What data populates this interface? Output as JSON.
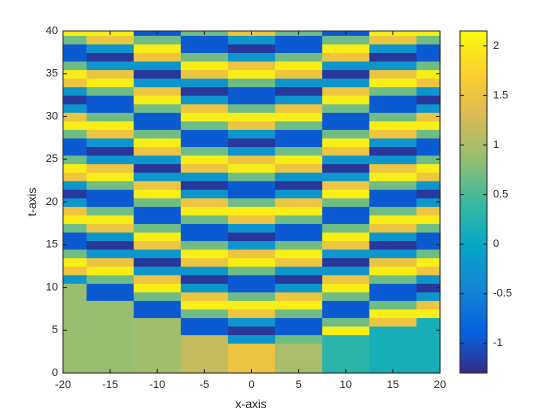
{
  "chart_data": {
    "type": "heatmap",
    "xlabel": "x-axis",
    "ylabel": "t-axis",
    "colormap": "parula",
    "x": [
      -20,
      -15,
      -10,
      -5,
      0,
      5,
      10,
      15,
      20
    ],
    "y": [
      0,
      1,
      2,
      3,
      4,
      5,
      6,
      7,
      8,
      9,
      10,
      11,
      12,
      13,
      14,
      15,
      16,
      17,
      18,
      19,
      20,
      21,
      22,
      23,
      24,
      25,
      26,
      27,
      28,
      29,
      30,
      31,
      32,
      33,
      34,
      35,
      36,
      37,
      38,
      39,
      40
    ],
    "z": [
      [
        0.9,
        0.9,
        0.95,
        1.15,
        1.5,
        1.0,
        0.3,
        0.15,
        0.15
      ],
      [
        0.9,
        0.9,
        0.95,
        1.15,
        1.5,
        1.0,
        0.3,
        0.15,
        0.15
      ],
      [
        0.9,
        0.9,
        0.95,
        1.15,
        1.5,
        1.0,
        0.3,
        0.15,
        0.15
      ],
      [
        0.9,
        0.9,
        0.95,
        1.15,
        1.53,
        1.0,
        0.3,
        0.15,
        0.15
      ],
      [
        0.9,
        0.9,
        0.95,
        1.15,
        -0.23,
        0.69,
        0.3,
        0.15,
        0.15
      ],
      [
        0.9,
        0.9,
        0.95,
        -0.94,
        -1.2,
        -0.94,
        2.03,
        0.15,
        0.15
      ],
      [
        0.9,
        0.9,
        0.95,
        -0.94,
        -0.23,
        -0.94,
        0.69,
        1.53,
        0.15
      ],
      [
        0.9,
        0.9,
        -0.94,
        0.69,
        1.53,
        0.69,
        -0.94,
        2.03,
        2.03
      ],
      [
        0.9,
        0.9,
        -0.94,
        2.03,
        2.03,
        2.03,
        -0.94,
        0.69,
        1.53
      ],
      [
        0.9,
        -0.94,
        0.69,
        1.53,
        0.69,
        1.53,
        0.69,
        -0.94,
        -0.23
      ],
      [
        0.9,
        -0.94,
        2.03,
        -0.23,
        -0.94,
        -0.23,
        2.03,
        -0.94,
        -1.2
      ],
      [
        -0.23,
        0.69,
        1.53,
        -1.2,
        -0.94,
        -1.2,
        1.53,
        0.69,
        -0.23
      ],
      [
        1.53,
        2.03,
        -0.23,
        -0.23,
        0.69,
        -0.23,
        -0.23,
        2.03,
        1.53
      ],
      [
        2.03,
        1.53,
        -1.2,
        1.53,
        2.03,
        1.53,
        -1.2,
        1.53,
        2.03
      ],
      [
        0.69,
        -0.23,
        -0.23,
        2.03,
        1.53,
        2.03,
        -0.23,
        -0.23,
        0.69
      ],
      [
        -0.94,
        -1.2,
        1.53,
        0.69,
        -0.23,
        0.69,
        1.53,
        -1.2,
        -0.94
      ],
      [
        -0.94,
        -0.23,
        2.03,
        -0.94,
        -1.2,
        -0.94,
        2.03,
        -0.23,
        -0.94
      ],
      [
        0.69,
        1.53,
        0.69,
        -0.94,
        -0.23,
        -0.94,
        0.69,
        1.53,
        0.69
      ],
      [
        2.03,
        2.03,
        -0.94,
        0.69,
        1.53,
        0.69,
        -0.94,
        2.03,
        2.03
      ],
      [
        1.53,
        0.69,
        -0.94,
        2.03,
        2.03,
        2.03,
        -0.94,
        0.69,
        1.53
      ],
      [
        -0.23,
        -0.94,
        0.69,
        1.53,
        0.69,
        1.53,
        0.69,
        -0.94,
        -0.23
      ],
      [
        -1.2,
        -0.94,
        2.03,
        -0.23,
        -0.94,
        -0.23,
        2.03,
        -0.94,
        -1.2
      ],
      [
        -0.23,
        0.69,
        1.53,
        -1.2,
        -0.94,
        -1.2,
        1.53,
        0.69,
        -0.23
      ],
      [
        1.53,
        2.03,
        -0.23,
        -0.23,
        0.69,
        -0.23,
        -0.23,
        2.03,
        1.53
      ],
      [
        2.03,
        1.53,
        -1.2,
        1.53,
        2.03,
        1.53,
        -1.2,
        1.53,
        2.03
      ],
      [
        0.69,
        -0.23,
        -0.23,
        2.03,
        1.53,
        2.03,
        -0.23,
        -0.23,
        0.69
      ],
      [
        -0.94,
        -1.2,
        1.53,
        0.69,
        -0.23,
        0.69,
        1.53,
        -1.2,
        -0.94
      ],
      [
        -0.94,
        -0.23,
        2.03,
        -0.94,
        -1.2,
        -0.94,
        2.03,
        -0.23,
        -0.94
      ],
      [
        0.69,
        1.53,
        0.69,
        -0.94,
        -0.23,
        -0.94,
        0.69,
        1.53,
        0.69
      ],
      [
        2.03,
        2.03,
        -0.94,
        0.69,
        1.53,
        0.69,
        -0.94,
        2.03,
        2.03
      ],
      [
        1.53,
        0.69,
        -0.94,
        2.03,
        2.03,
        2.03,
        -0.94,
        0.69,
        1.53
      ],
      [
        -0.23,
        -0.94,
        0.69,
        1.53,
        0.69,
        1.53,
        0.69,
        -0.94,
        -0.23
      ],
      [
        -1.2,
        -0.94,
        2.03,
        -0.23,
        -0.94,
        -0.23,
        2.03,
        -0.94,
        -1.2
      ],
      [
        -0.23,
        0.69,
        1.53,
        -1.2,
        -0.94,
        -1.2,
        1.53,
        0.69,
        -0.23
      ],
      [
        1.53,
        2.03,
        -0.23,
        -0.23,
        0.69,
        -0.23,
        -0.23,
        2.03,
        1.53
      ],
      [
        2.03,
        1.53,
        -1.2,
        1.53,
        2.03,
        1.53,
        -1.2,
        1.53,
        2.03
      ],
      [
        0.69,
        -0.23,
        -0.23,
        2.03,
        1.53,
        2.03,
        -0.23,
        -0.23,
        0.69
      ],
      [
        -0.94,
        -1.2,
        1.53,
        0.69,
        -0.23,
        0.69,
        1.53,
        -1.2,
        -0.94
      ],
      [
        -0.94,
        -0.23,
        2.03,
        -0.94,
        -1.2,
        -0.94,
        2.03,
        -0.23,
        -0.94
      ],
      [
        0.69,
        1.53,
        0.69,
        -0.94,
        -0.23,
        -0.94,
        0.69,
        1.53,
        0.69
      ],
      [
        2.03,
        2.03,
        -0.94,
        0.69,
        1.53,
        0.69,
        -0.94,
        2.03,
        2.03
      ]
    ],
    "xlim": [
      -20,
      20
    ],
    "ylim": [
      0,
      40
    ],
    "xticks": [
      -20,
      -15,
      -10,
      -5,
      0,
      5,
      10,
      15,
      20
    ],
    "yticks": [
      0,
      5,
      10,
      15,
      20,
      25,
      30,
      35,
      40
    ],
    "clim": [
      -1.3,
      2.15
    ],
    "colorbar_ticks": [
      -1,
      -0.5,
      0,
      0.5,
      1,
      1.5,
      2
    ]
  }
}
